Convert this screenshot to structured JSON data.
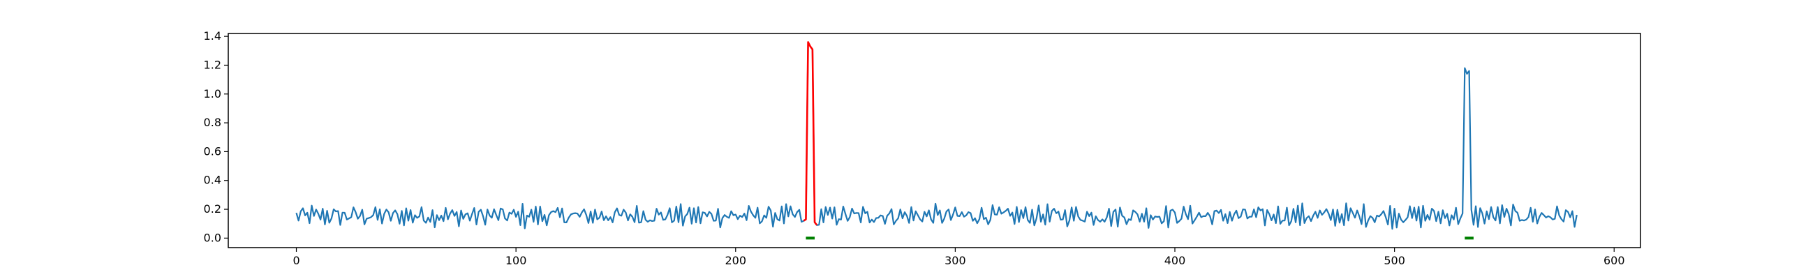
{
  "chart_data": {
    "type": "line",
    "title": "",
    "xlabel": "",
    "ylabel": "",
    "xlim": [
      -31,
      612
    ],
    "ylim": [
      -0.066,
      1.42
    ],
    "x_ticks": [
      0,
      100,
      200,
      300,
      400,
      500,
      600
    ],
    "x_tick_labels": [
      "0",
      "100",
      "200",
      "300",
      "400",
      "500",
      "600"
    ],
    "y_ticks": [
      0.0,
      0.2,
      0.4,
      0.6,
      0.8,
      1.0,
      1.2,
      1.4
    ],
    "y_tick_labels": [
      "0.0",
      "0.2",
      "0.4",
      "0.6",
      "0.8",
      "1.0",
      "1.2",
      "1.4"
    ],
    "grid": false,
    "n_points": 584,
    "series": [
      {
        "color": "#1f77b4",
        "baseline_mean": 0.155,
        "baseline_noise_range": [
          0.02,
          0.27
        ],
        "spikes": [
          {
            "x": 233,
            "y": 1.36
          },
          {
            "x": 234,
            "y": 1.33
          },
          {
            "x": 235,
            "y": 1.31
          },
          {
            "x": 532,
            "y": 1.18
          },
          {
            "x": 533,
            "y": 1.14
          },
          {
            "x": 534,
            "y": 1.16
          }
        ]
      }
    ],
    "highlight_segment": {
      "color": "#ff0000",
      "x_range": [
        231,
        237
      ],
      "values": [
        {
          "x": 231,
          "y": 0.12
        },
        {
          "x": 232,
          "y": 0.13
        },
        {
          "x": 233,
          "y": 1.36
        },
        {
          "x": 234,
          "y": 1.33
        },
        {
          "x": 235,
          "y": 1.31
        },
        {
          "x": 236,
          "y": 0.11
        },
        {
          "x": 237,
          "y": 0.09
        }
      ]
    },
    "markers": {
      "color": "#008000",
      "y": 0.0,
      "ranges": [
        [
          232,
          236
        ],
        [
          532,
          536
        ]
      ]
    }
  }
}
